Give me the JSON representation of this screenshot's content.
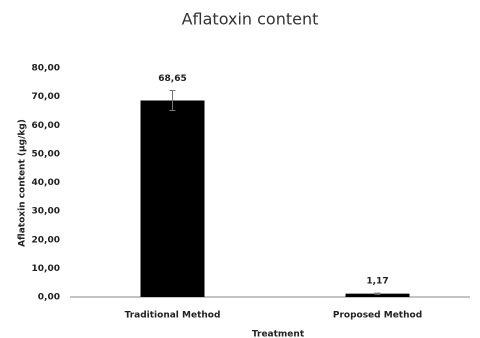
{
  "chart_data": {
    "type": "bar",
    "title": "Aflatoxin content",
    "x_label": "Treatment",
    "y_label": "Aflatoxin content (µg/kg)",
    "categories": [
      "Traditional Method",
      "Proposed Method"
    ],
    "values": [
      68.65,
      1.17
    ],
    "value_labels": [
      "68,65",
      "1,17"
    ],
    "errors": [
      3.5,
      0.2
    ],
    "color": "#000000",
    "ylim": [
      0,
      80
    ],
    "yticks": [
      {
        "value": 0,
        "label": "0,00"
      },
      {
        "value": 10,
        "label": "10,00"
      },
      {
        "value": 20,
        "label": "20,00"
      },
      {
        "value": 30,
        "label": "30,00"
      },
      {
        "value": 40,
        "label": "40,00"
      },
      {
        "value": 50,
        "label": "50,00"
      },
      {
        "value": 60,
        "label": "60,00"
      },
      {
        "value": 70,
        "label": "70,00"
      },
      {
        "value": 80,
        "label": "80,00"
      }
    ],
    "grid": false
  }
}
